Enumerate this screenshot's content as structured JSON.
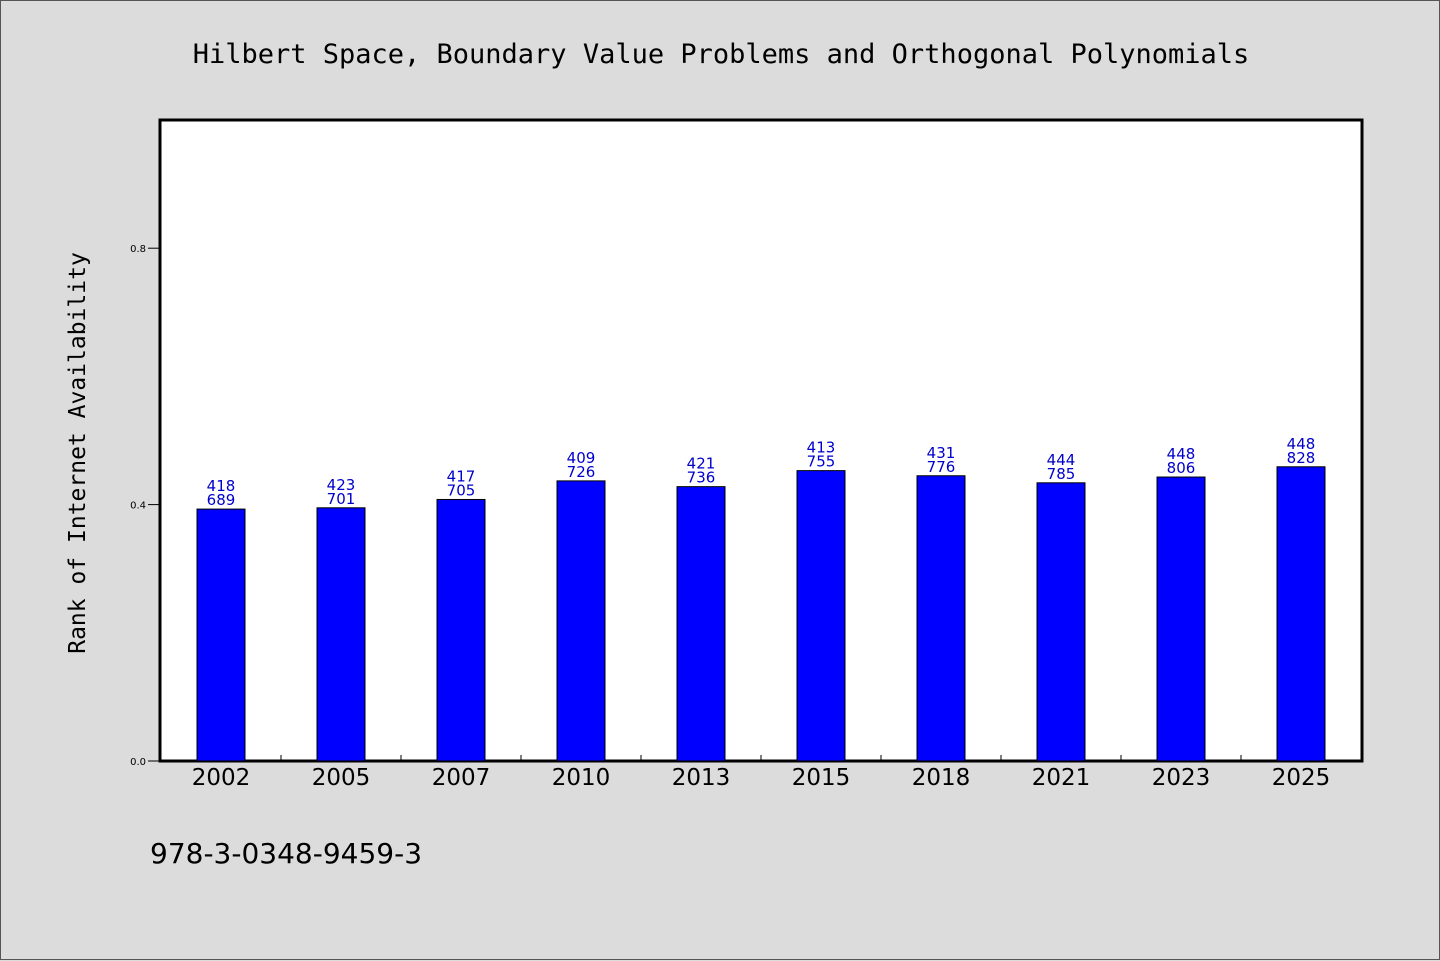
{
  "colors": {
    "background": "#dcdcdc",
    "plot_background": "#ffffff",
    "bar": "#0000ff",
    "label": "#0000cc"
  },
  "footer_code": "978-3-0348-9459-3",
  "chart_data": {
    "type": "bar",
    "title": "Hilbert Space, Boundary Value Problems and Orthogonal Polynomials",
    "ylabel": "Rank of Internet Availability",
    "xlabel": "",
    "ylim": [
      0.0,
      1.0
    ],
    "yticks": [
      {
        "value": 0.0,
        "label": "0.0"
      },
      {
        "value": 0.4,
        "label": "0.4"
      },
      {
        "value": 0.8,
        "label": "0.8"
      }
    ],
    "categories": [
      "2002",
      "2005",
      "2007",
      "2010",
      "2013",
      "2015",
      "2018",
      "2021",
      "2023",
      "2025"
    ],
    "values": [
      0.393,
      0.395,
      0.408,
      0.437,
      0.428,
      0.453,
      0.445,
      0.434,
      0.443,
      0.459
    ],
    "label_top": [
      "418",
      "423",
      "417",
      "409",
      "421",
      "413",
      "431",
      "444",
      "448",
      "448"
    ],
    "label_bottom": [
      "689",
      "701",
      "705",
      "726",
      "736",
      "755",
      "776",
      "785",
      "806",
      "828"
    ],
    "grid": false,
    "legend": "none"
  }
}
